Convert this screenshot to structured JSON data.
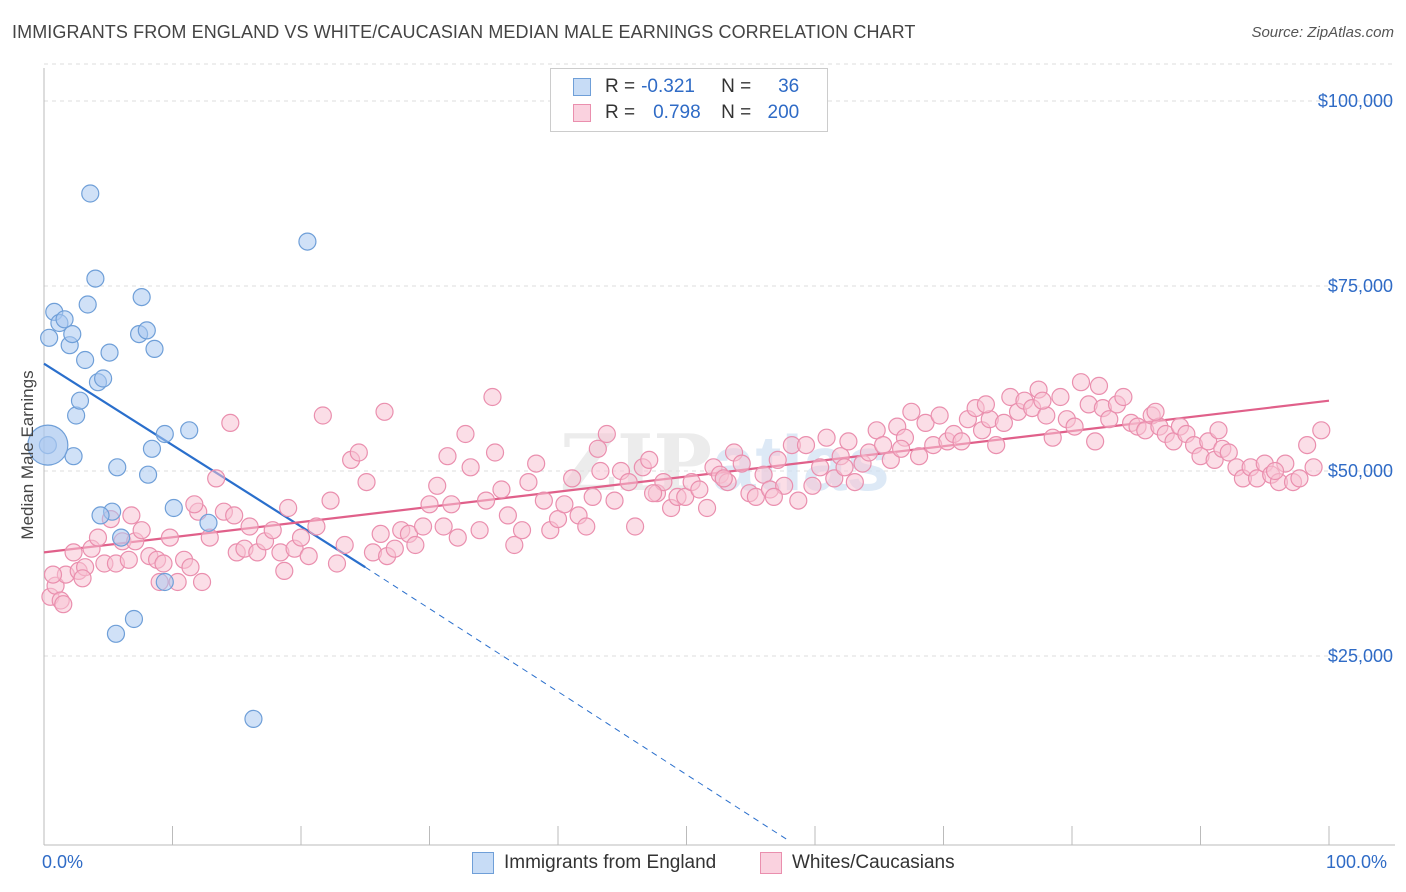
{
  "title": "IMMIGRANTS FROM ENGLAND VS WHITE/CAUCASIAN MEDIAN MALE EARNINGS CORRELATION CHART",
  "source": "Source: ZipAtlas.com",
  "colors": {
    "blue_fill": "#a9c8f0",
    "blue_stroke": "#6f9fd8",
    "blue_line": "#2a6fcc",
    "pink_fill": "#f7c3d3",
    "pink_stroke": "#ea8fae",
    "pink_line": "#e0608a",
    "accent_text": "#2f6bc6",
    "grid": "#dddddd"
  },
  "legend": {
    "rows": [
      {
        "r_label": "R =",
        "r_value": "-0.321",
        "n_label": "N =",
        "n_value": "36"
      },
      {
        "r_label": "R =",
        "r_value": "0.798",
        "n_label": "N =",
        "n_value": "200"
      }
    ]
  },
  "chart_data": {
    "type": "scatter",
    "title": "IMMIGRANTS FROM ENGLAND VS WHITE/CAUCASIAN MEDIAN MALE EARNINGS CORRELATION CHART",
    "xlabel": "",
    "ylabel": "Median Male Earnings",
    "x_range": [
      0,
      100
    ],
    "y_range": [
      0,
      105000
    ],
    "x_tick_labels": [
      "0.0%",
      "100.0%"
    ],
    "y_ticks": [
      25000,
      50000,
      75000,
      100000
    ],
    "y_tick_labels": [
      "$25,000",
      "$50,000",
      "$75,000",
      "$100,000"
    ],
    "grid": "horizontal dashed",
    "legend_position": "bottom",
    "watermark": "ZIPatlas",
    "series": [
      {
        "name": "Immigrants from England",
        "color": "blue",
        "R": -0.321,
        "N": 36,
        "trend": {
          "x_start": 0,
          "y_start": 64500,
          "x_solid_end": 25,
          "y_solid_end": 37000,
          "x_dash_end": 58,
          "y_dash_end": 0
        },
        "points": [
          [
            0.3,
            53500
          ],
          [
            0.4,
            68000
          ],
          [
            0.8,
            71500
          ],
          [
            1.2,
            70000
          ],
          [
            1.6,
            70500
          ],
          [
            2.0,
            67000
          ],
          [
            2.2,
            68500
          ],
          [
            2.3,
            52000
          ],
          [
            2.5,
            57500
          ],
          [
            2.8,
            59500
          ],
          [
            3.2,
            65000
          ],
          [
            3.4,
            72500
          ],
          [
            3.6,
            87500
          ],
          [
            4.0,
            76000
          ],
          [
            4.2,
            62000
          ],
          [
            4.6,
            62500
          ],
          [
            5.1,
            66000
          ],
          [
            5.3,
            44500
          ],
          [
            5.7,
            50500
          ],
          [
            6.0,
            41000
          ],
          [
            7.0,
            30000
          ],
          [
            7.4,
            68500
          ],
          [
            7.6,
            73500
          ],
          [
            8.0,
            69000
          ],
          [
            8.1,
            49500
          ],
          [
            8.4,
            53000
          ],
          [
            8.6,
            66500
          ],
          [
            9.4,
            55000
          ],
          [
            9.4,
            35000
          ],
          [
            10.1,
            45000
          ],
          [
            11.3,
            55500
          ],
          [
            12.8,
            43000
          ],
          [
            16.3,
            16500
          ],
          [
            20.5,
            81000
          ],
          [
            5.6,
            28000
          ],
          [
            4.4,
            44000
          ]
        ]
      },
      {
        "name": "Whites/Caucasians",
        "color": "pink",
        "R": 0.798,
        "N": 200,
        "trend": {
          "x_start": 0,
          "y_start": 39000,
          "x_end": 100,
          "y_end": 59500
        },
        "points": [
          [
            0.5,
            33000
          ],
          [
            0.9,
            34500
          ],
          [
            1.3,
            32500
          ],
          [
            1.7,
            36000
          ],
          [
            2.3,
            39000
          ],
          [
            2.7,
            36500
          ],
          [
            3.2,
            37000
          ],
          [
            3.7,
            39500
          ],
          [
            4.2,
            41000
          ],
          [
            4.7,
            37500
          ],
          [
            5.2,
            43500
          ],
          [
            5.6,
            37500
          ],
          [
            6.1,
            40500
          ],
          [
            6.6,
            38000
          ],
          [
            7.1,
            40500
          ],
          [
            7.6,
            42000
          ],
          [
            8.2,
            38500
          ],
          [
            8.8,
            38000
          ],
          [
            9.3,
            37500
          ],
          [
            9.8,
            41000
          ],
          [
            10.4,
            35000
          ],
          [
            10.9,
            38000
          ],
          [
            11.4,
            37000
          ],
          [
            12.0,
            44500
          ],
          [
            12.3,
            35000
          ],
          [
            12.9,
            41000
          ],
          [
            13.4,
            49000
          ],
          [
            14.0,
            44500
          ],
          [
            14.5,
            56500
          ],
          [
            15.0,
            39000
          ],
          [
            15.6,
            39500
          ],
          [
            16.0,
            42500
          ],
          [
            16.6,
            39000
          ],
          [
            17.2,
            40500
          ],
          [
            17.8,
            42000
          ],
          [
            18.4,
            39000
          ],
          [
            19.0,
            45000
          ],
          [
            19.5,
            39500
          ],
          [
            20.0,
            41000
          ],
          [
            20.6,
            38500
          ],
          [
            21.2,
            42500
          ],
          [
            21.7,
            57500
          ],
          [
            22.3,
            46000
          ],
          [
            22.8,
            37500
          ],
          [
            23.4,
            40000
          ],
          [
            23.9,
            51500
          ],
          [
            24.5,
            52500
          ],
          [
            25.1,
            48500
          ],
          [
            25.6,
            39000
          ],
          [
            26.2,
            41500
          ],
          [
            26.7,
            38500
          ],
          [
            27.3,
            39500
          ],
          [
            27.8,
            42000
          ],
          [
            28.4,
            41500
          ],
          [
            28.9,
            40000
          ],
          [
            29.5,
            42500
          ],
          [
            30.0,
            45500
          ],
          [
            30.6,
            48000
          ],
          [
            31.1,
            42500
          ],
          [
            31.7,
            45500
          ],
          [
            32.2,
            41000
          ],
          [
            32.8,
            55000
          ],
          [
            33.2,
            50500
          ],
          [
            33.9,
            42000
          ],
          [
            34.4,
            46000
          ],
          [
            34.9,
            60000
          ],
          [
            35.6,
            47500
          ],
          [
            36.1,
            44000
          ],
          [
            36.6,
            40000
          ],
          [
            37.2,
            42000
          ],
          [
            37.7,
            48500
          ],
          [
            38.3,
            51000
          ],
          [
            38.9,
            46000
          ],
          [
            39.4,
            42000
          ],
          [
            40.0,
            43500
          ],
          [
            40.5,
            45500
          ],
          [
            41.1,
            49000
          ],
          [
            41.6,
            44000
          ],
          [
            42.2,
            42500
          ],
          [
            42.7,
            46500
          ],
          [
            43.3,
            50000
          ],
          [
            43.8,
            55000
          ],
          [
            44.4,
            46000
          ],
          [
            44.9,
            50000
          ],
          [
            45.5,
            48500
          ],
          [
            46.0,
            42500
          ],
          [
            46.6,
            50500
          ],
          [
            47.1,
            51500
          ],
          [
            47.7,
            47000
          ],
          [
            48.2,
            48500
          ],
          [
            48.8,
            45000
          ],
          [
            49.3,
            46500
          ],
          [
            49.9,
            46500
          ],
          [
            50.4,
            48500
          ],
          [
            51.0,
            47500
          ],
          [
            51.6,
            45000
          ],
          [
            52.1,
            50500
          ],
          [
            52.6,
            49500
          ],
          [
            53.2,
            48500
          ],
          [
            53.7,
            52500
          ],
          [
            54.3,
            51000
          ],
          [
            54.9,
            47000
          ],
          [
            55.4,
            46500
          ],
          [
            56.0,
            49500
          ],
          [
            56.5,
            47500
          ],
          [
            57.1,
            51500
          ],
          [
            57.6,
            48000
          ],
          [
            58.2,
            53500
          ],
          [
            58.7,
            46000
          ],
          [
            59.3,
            53500
          ],
          [
            59.8,
            48000
          ],
          [
            60.4,
            50500
          ],
          [
            60.9,
            54500
          ],
          [
            61.5,
            49000
          ],
          [
            62.0,
            52000
          ],
          [
            62.6,
            54000
          ],
          [
            63.1,
            48500
          ],
          [
            63.7,
            51000
          ],
          [
            64.2,
            52500
          ],
          [
            64.8,
            55500
          ],
          [
            65.3,
            53500
          ],
          [
            65.9,
            51500
          ],
          [
            66.4,
            56000
          ],
          [
            67.0,
            54500
          ],
          [
            67.5,
            58000
          ],
          [
            68.1,
            52000
          ],
          [
            68.6,
            56500
          ],
          [
            69.2,
            53500
          ],
          [
            69.7,
            57500
          ],
          [
            70.3,
            54000
          ],
          [
            70.8,
            55000
          ],
          [
            71.4,
            54000
          ],
          [
            71.9,
            57000
          ],
          [
            72.5,
            58500
          ],
          [
            73.0,
            55500
          ],
          [
            73.6,
            57000
          ],
          [
            74.1,
            53500
          ],
          [
            74.7,
            56500
          ],
          [
            75.2,
            60000
          ],
          [
            75.8,
            58000
          ],
          [
            76.3,
            59500
          ],
          [
            76.9,
            58500
          ],
          [
            77.4,
            61000
          ],
          [
            78.0,
            57500
          ],
          [
            78.5,
            54500
          ],
          [
            79.1,
            60000
          ],
          [
            79.6,
            57000
          ],
          [
            80.2,
            56000
          ],
          [
            80.7,
            62000
          ],
          [
            81.3,
            59000
          ],
          [
            81.8,
            54000
          ],
          [
            82.4,
            58500
          ],
          [
            82.9,
            57000
          ],
          [
            83.5,
            59000
          ],
          [
            84.0,
            60000
          ],
          [
            84.6,
            56500
          ],
          [
            85.1,
            56000
          ],
          [
            85.7,
            55500
          ],
          [
            86.2,
            57500
          ],
          [
            86.8,
            56000
          ],
          [
            87.3,
            55000
          ],
          [
            87.9,
            54000
          ],
          [
            88.4,
            56000
          ],
          [
            88.9,
            55000
          ],
          [
            89.5,
            53500
          ],
          [
            90.0,
            52000
          ],
          [
            90.6,
            54000
          ],
          [
            91.1,
            51500
          ],
          [
            91.7,
            53000
          ],
          [
            92.2,
            52500
          ],
          [
            92.8,
            50500
          ],
          [
            93.3,
            49000
          ],
          [
            93.9,
            50500
          ],
          [
            94.4,
            49000
          ],
          [
            95.0,
            51000
          ],
          [
            95.5,
            49500
          ],
          [
            96.1,
            48500
          ],
          [
            96.6,
            51000
          ],
          [
            97.2,
            48500
          ],
          [
            97.7,
            49000
          ],
          [
            98.3,
            53500
          ],
          [
            0.7,
            36000
          ],
          [
            1.5,
            32000
          ],
          [
            3.0,
            35500
          ],
          [
            6.8,
            44000
          ],
          [
            9.0,
            35000
          ],
          [
            11.7,
            45500
          ],
          [
            14.8,
            44000
          ],
          [
            18.7,
            36500
          ],
          [
            26.5,
            58000
          ],
          [
            31.4,
            52000
          ],
          [
            35.1,
            52500
          ],
          [
            43.1,
            53000
          ],
          [
            47.4,
            47000
          ],
          [
            52.9,
            49000
          ],
          [
            56.8,
            46500
          ],
          [
            62.3,
            50500
          ],
          [
            66.7,
            53000
          ],
          [
            73.3,
            59000
          ],
          [
            77.7,
            59500
          ],
          [
            82.1,
            61500
          ],
          [
            86.5,
            58000
          ],
          [
            91.4,
            55500
          ],
          [
            95.8,
            50000
          ],
          [
            98.8,
            50500
          ],
          [
            99.4,
            55500
          ]
        ]
      }
    ]
  },
  "axis": {
    "x_left_label": "0.0%",
    "x_right_label": "100.0%",
    "ylabel": "Median Male Earnings"
  },
  "bottom_legend": {
    "items": [
      {
        "label": "Immigrants from England"
      },
      {
        "label": "Whites/Caucasians"
      }
    ]
  }
}
